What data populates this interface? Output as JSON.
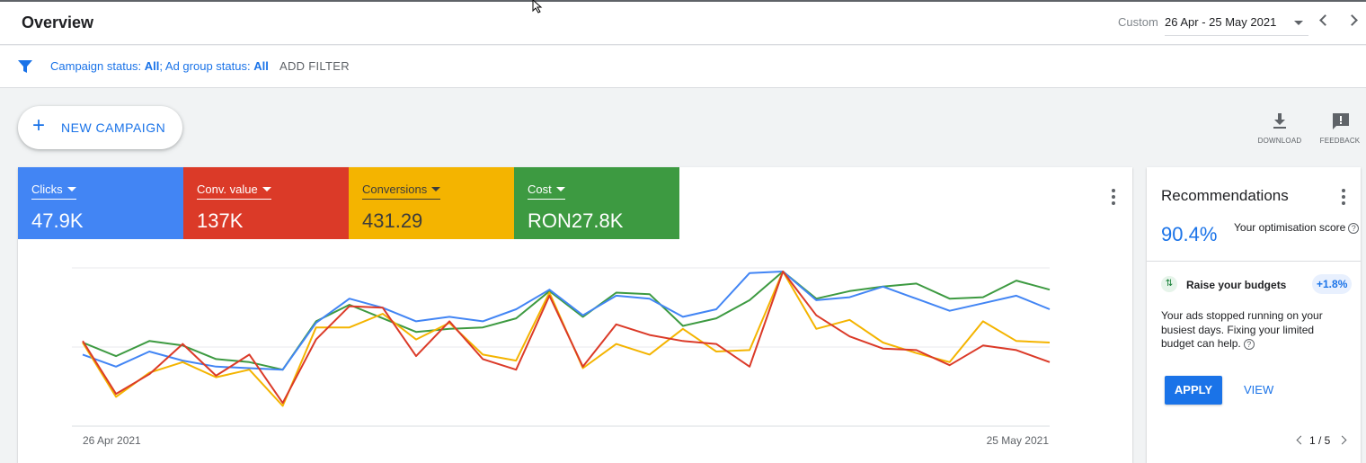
{
  "header": {
    "title": "Overview",
    "range_label": "Custom",
    "date_range": "26 Apr - 25 May 2021"
  },
  "filterbar": {
    "campaign_status_label": "Campaign status: ",
    "campaign_status_value": "All",
    "separator": "; ",
    "adgroup_status_label": "Ad group status: ",
    "adgroup_status_value": "All",
    "add_filter": "ADD FILTER"
  },
  "toolbar": {
    "new_campaign": "NEW CAMPAIGN",
    "download": "DOWNLOAD",
    "feedback": "FEEDBACK"
  },
  "metrics": [
    {
      "label": "Clicks",
      "value": "47.9K",
      "color": "#4285f4"
    },
    {
      "label": "Conv. value",
      "value": "137K",
      "color": "#db3a28"
    },
    {
      "label": "Conversions",
      "value": "431.29",
      "color": "#f4b400"
    },
    {
      "label": "Cost",
      "value": "RON27.8K",
      "color": "#3d9a41"
    }
  ],
  "chart_data": {
    "type": "line",
    "x_start_label": "26 Apr 2021",
    "x_end_label": "25 May 2021",
    "y_range": [
      0,
      100
    ],
    "grid": true,
    "series": [
      {
        "name": "Clicks",
        "color": "#4285f4",
        "values": [
          45,
          37,
          47,
          41,
          37,
          36,
          35,
          66,
          82,
          76,
          67,
          70,
          67,
          75,
          88,
          71,
          84,
          82,
          70,
          75,
          99,
          100,
          81,
          83,
          90,
          82,
          74,
          79,
          84,
          75
        ]
      },
      {
        "name": "Conv. value",
        "color": "#db3a28",
        "values": [
          54,
          19,
          32,
          52,
          31,
          45,
          13,
          55,
          77,
          76,
          44,
          67,
          42,
          35,
          84,
          37,
          65,
          58,
          54,
          52,
          37,
          100,
          71,
          57,
          49,
          48,
          38,
          51,
          48,
          40
        ]
      },
      {
        "name": "Conversions",
        "color": "#f4b400",
        "values": [
          53,
          17,
          33,
          40,
          30,
          35,
          11,
          63,
          63,
          72,
          55,
          66,
          45,
          41,
          86,
          36,
          52,
          45,
          62,
          47,
          48,
          100,
          62,
          68,
          53,
          46,
          40,
          67,
          54,
          53
        ]
      },
      {
        "name": "Cost",
        "color": "#3d9a41",
        "values": [
          53,
          44,
          54,
          51,
          42,
          40,
          35,
          67,
          78,
          69,
          60,
          62,
          63,
          69,
          87,
          70,
          86,
          85,
          64,
          69,
          81,
          100,
          82,
          87,
          90,
          92,
          82,
          83,
          94,
          88
        ]
      }
    ]
  },
  "recommendations": {
    "title": "Recommendations",
    "score": "90.4%",
    "score_label": "Your optimisation score",
    "item_title": "Raise your budgets",
    "item_badge": "+1.8%",
    "item_desc": "Your ads stopped running on your busiest days. Fixing your limited budget can help.",
    "apply": "APPLY",
    "view": "VIEW",
    "pager": "1 / 5"
  }
}
